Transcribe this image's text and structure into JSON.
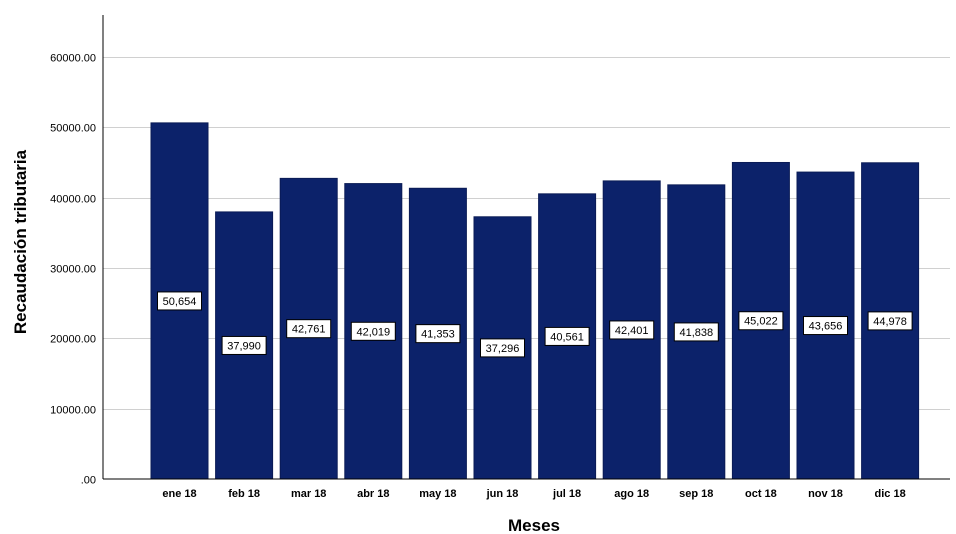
{
  "chart_data": {
    "type": "bar",
    "xlabel": "Meses",
    "ylabel": "Recaudación tributaria",
    "categories": [
      "ene 18",
      "feb 18",
      "mar 18",
      "abr 18",
      "may 18",
      "jun 18",
      "jul 18",
      "ago 18",
      "sep 18",
      "oct 18",
      "nov 18",
      "dic 18"
    ],
    "values": [
      50654,
      37990,
      42761,
      42019,
      41353,
      37296,
      40561,
      42401,
      41838,
      45022,
      43656,
      44978
    ],
    "data_labels": [
      "50,654",
      "37,990",
      "42,761",
      "42,019",
      "41,353",
      "37,296",
      "40,561",
      "42,401",
      "41,838",
      "45,022",
      "43,656",
      "44,978"
    ],
    "yticks": [
      0,
      10000,
      20000,
      30000,
      40000,
      50000,
      60000
    ],
    "ytick_labels": [
      ".00",
      "10000.00",
      "20000.00",
      "30000.00",
      "40000.00",
      "50000.00",
      "60000.00"
    ],
    "ylim": [
      0,
      66000
    ],
    "grid": true,
    "colors": {
      "bar": "#0c226a",
      "bar_edge": "#0a1b55",
      "grid": "#d0d0d0",
      "axis": "#000000"
    }
  }
}
